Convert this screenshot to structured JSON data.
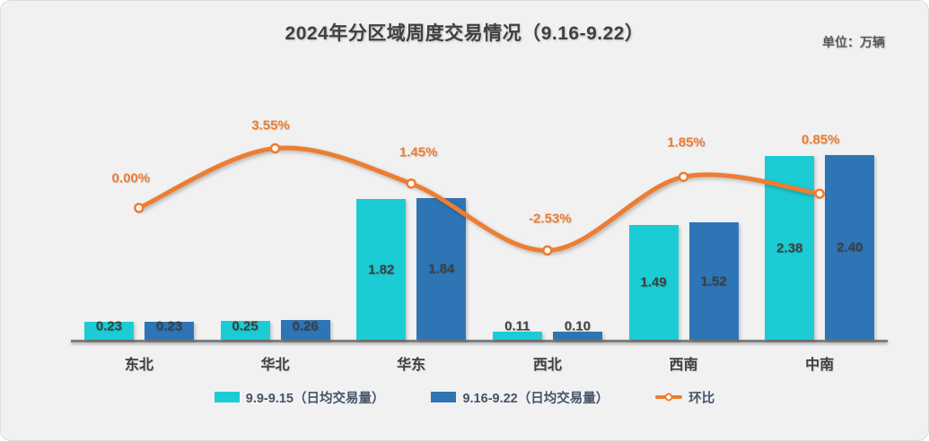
{
  "title": "2024年分区域周度交易情况（9.16-9.22）",
  "unit_label": "单位：万辆",
  "colors": {
    "bar_week1": "#1BCCD5",
    "bar_week2": "#2E75B6",
    "line": "#ED7D31",
    "axis": "#7f7f7f",
    "text_dark": "#404040",
    "legend_text": "#44546A",
    "background": "#f1f1f1"
  },
  "legend": [
    {
      "label": "9.9-9.15（日均交易量）",
      "type": "bar",
      "color": "#1BCCD5"
    },
    {
      "label": "9.16-9.22（日均交易量）",
      "type": "bar",
      "color": "#2E75B6"
    },
    {
      "label": "环比",
      "type": "line",
      "color": "#ED7D31"
    }
  ],
  "chart_data": {
    "type": "bar",
    "subtype": "grouped-bars-with-line-overlay",
    "title": "2024年分区域周度交易情况（9.16-9.22）",
    "unit": "万辆",
    "categories": [
      "东北",
      "华北",
      "华东",
      "西北",
      "西南",
      "中南"
    ],
    "series": [
      {
        "name": "9.9-9.15（日均交易量）",
        "type": "bar",
        "color": "#1BCCD5",
        "values": [
          0.23,
          0.25,
          1.82,
          0.11,
          1.49,
          2.38
        ],
        "labels": [
          "0.23",
          "0.25",
          "1.82",
          "0.11",
          "1.49",
          "2.38"
        ]
      },
      {
        "name": "9.16-9.22（日均交易量）",
        "type": "bar",
        "color": "#2E75B6",
        "values": [
          0.23,
          0.26,
          1.84,
          0.1,
          1.52,
          2.4
        ],
        "labels": [
          "0.23",
          "0.26",
          "1.84",
          "0.10",
          "1.52",
          "2.40"
        ]
      },
      {
        "name": "环比",
        "type": "line",
        "color": "#ED7D31",
        "axis": "secondary-percent",
        "values": [
          0.0,
          3.55,
          1.45,
          -2.53,
          1.85,
          0.85
        ],
        "labels": [
          "0.00%",
          "3.55%",
          "1.45%",
          "-2.53%",
          "1.85%",
          "0.85%"
        ]
      }
    ],
    "xlabel": "",
    "ylabel": "",
    "y_axis_visible": false,
    "ylim": [
      0,
      2.6
    ],
    "grid": false,
    "legend_position": "bottom",
    "line_marker": "circle-white-fill-orange-ring",
    "smooth_line": true
  }
}
